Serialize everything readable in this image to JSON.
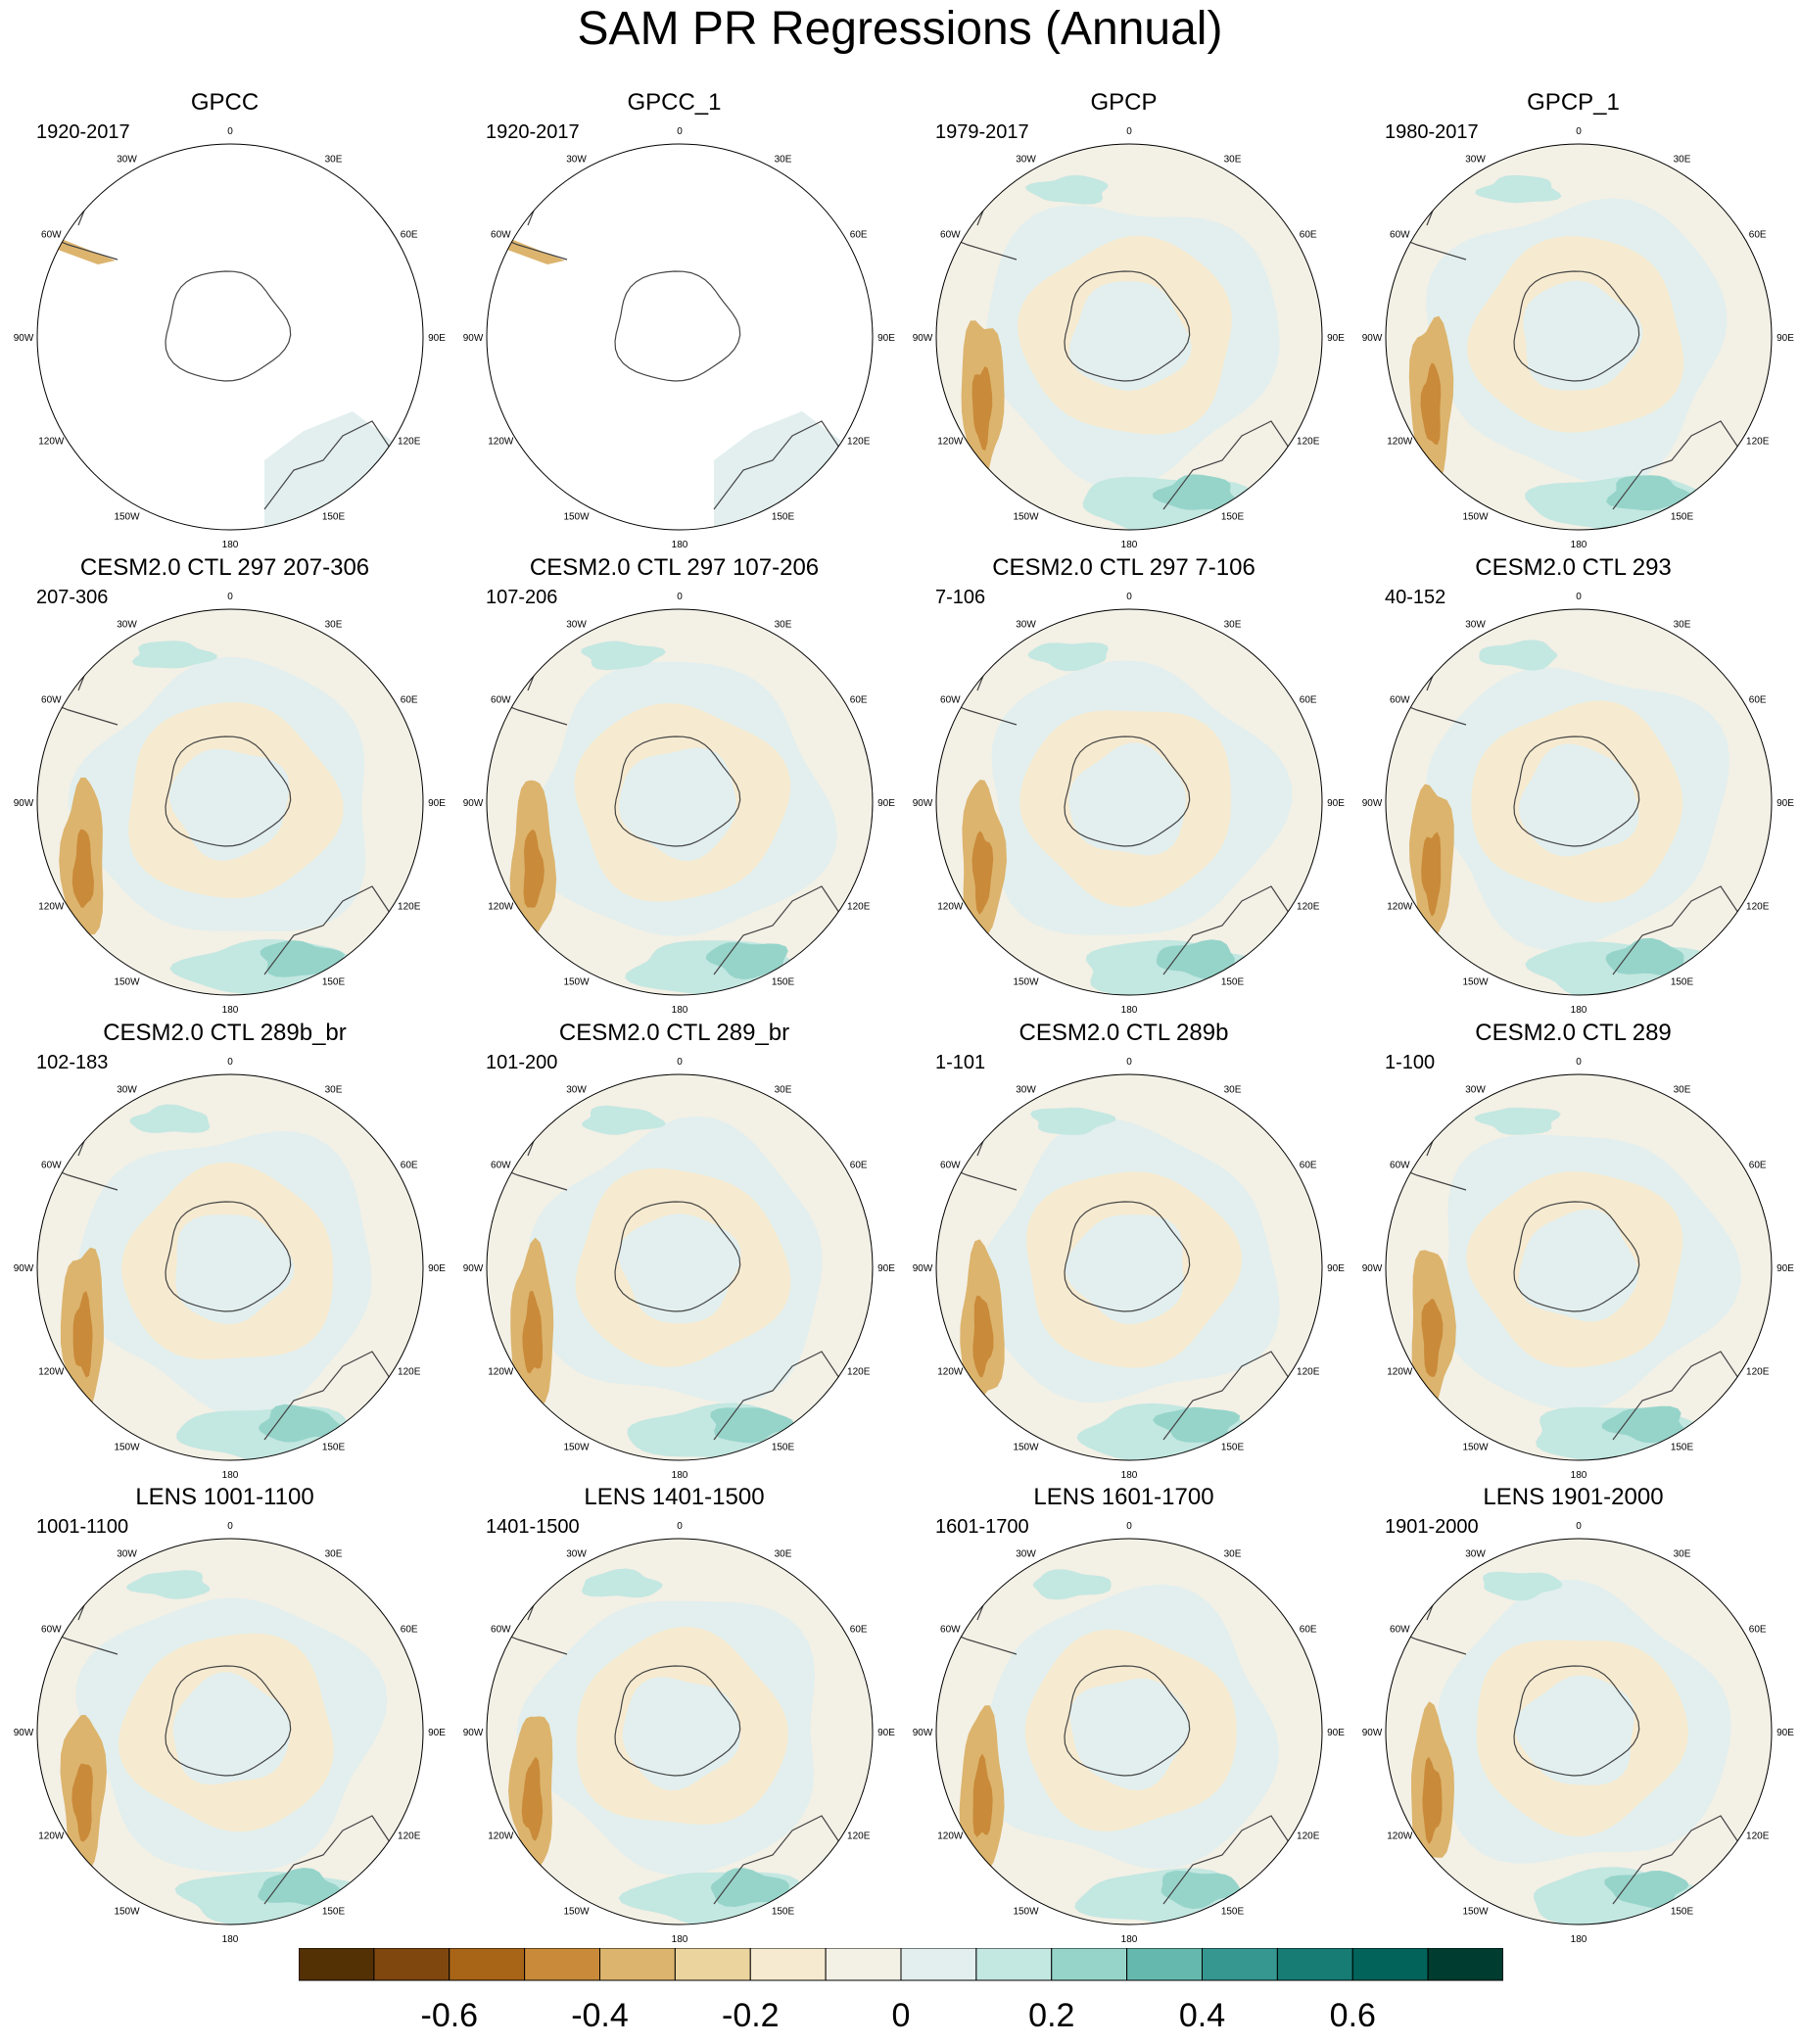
{
  "title": "SAM PR Regressions (Annual)",
  "longitude_labels": [
    "0",
    "30E",
    "60E",
    "90E",
    "120E",
    "150E",
    "180",
    "150W",
    "120W",
    "90W",
    "60W",
    "30W"
  ],
  "panels": [
    {
      "title": "GPCC",
      "period": "1920-2017",
      "coverage": "land"
    },
    {
      "title": "GPCC_1",
      "period": "1920-2017",
      "coverage": "land"
    },
    {
      "title": "GPCP",
      "period": "1979-2017",
      "coverage": "global"
    },
    {
      "title": "GPCP_1",
      "period": "1980-2017",
      "coverage": "global"
    },
    {
      "title": "CESM2.0 CTL 297 207-306",
      "period": "207-306",
      "coverage": "global"
    },
    {
      "title": "CESM2.0 CTL 297 107-206",
      "period": "107-206",
      "coverage": "global"
    },
    {
      "title": "CESM2.0 CTL 297 7-106",
      "period": "7-106",
      "coverage": "global"
    },
    {
      "title": "CESM2.0 CTL 293",
      "period": "40-152",
      "coverage": "global"
    },
    {
      "title": "CESM2.0 CTL 289b_br",
      "period": "102-183",
      "coverage": "global"
    },
    {
      "title": "CESM2.0 CTL 289_br",
      "period": "101-200",
      "coverage": "global"
    },
    {
      "title": "CESM2.0 CTL 289b",
      "period": "1-101",
      "coverage": "global"
    },
    {
      "title": "CESM2.0 CTL 289",
      "period": "1-100",
      "coverage": "global"
    },
    {
      "title": "LENS 1001-1100",
      "period": "1001-1100",
      "coverage": "global"
    },
    {
      "title": "LENS 1401-1500",
      "period": "1401-1500",
      "coverage": "global"
    },
    {
      "title": "LENS 1601-1700",
      "period": "1601-1700",
      "coverage": "global"
    },
    {
      "title": "LENS 1901-2000",
      "period": "1901-2000",
      "coverage": "global"
    }
  ],
  "colorbar": {
    "colors": [
      "#543005",
      "#7f470e",
      "#a86517",
      "#c98a3a",
      "#dcb46d",
      "#ebd49e",
      "#f6ead0",
      "#f3f0e6",
      "#e2efee",
      "#c3e7e1",
      "#96d4ca",
      "#64b8ad",
      "#35978f",
      "#177c74",
      "#016359",
      "#003c30"
    ],
    "tick_labels": [
      "-0.6",
      "-0.4",
      "-0.2",
      "0",
      "0.2",
      "0.4",
      "0.6"
    ]
  }
}
